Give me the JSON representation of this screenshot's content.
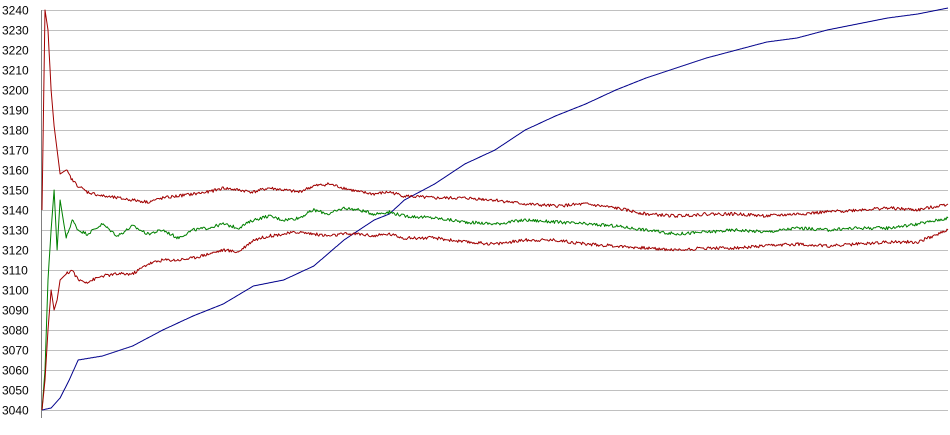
{
  "chart_data": {
    "type": "line",
    "title": "",
    "xlabel": "",
    "ylabel": "",
    "ylim": [
      3040,
      3240
    ],
    "xlim": [
      0,
      300
    ],
    "yticks": [
      3040,
      3050,
      3060,
      3070,
      3080,
      3090,
      3100,
      3110,
      3120,
      3130,
      3140,
      3150,
      3160,
      3170,
      3180,
      3190,
      3200,
      3210,
      3220,
      3230,
      3240
    ],
    "grid": true,
    "legend": "none",
    "series": [
      {
        "color": "#00008b",
        "x": [
          0,
          3,
          6,
          9,
          12,
          20,
          30,
          40,
          50,
          60,
          70,
          80,
          90,
          100,
          110,
          115,
          120,
          130,
          140,
          150,
          160,
          170,
          180,
          190,
          200,
          210,
          220,
          230,
          240,
          250,
          260,
          270,
          280,
          290,
          300
        ],
        "values": [
          3040,
          3041,
          3046,
          3055,
          3065,
          3067,
          3072,
          3080,
          3087,
          3093,
          3102,
          3105,
          3112,
          3125,
          3135,
          3138,
          3145,
          3153,
          3163,
          3170,
          3180,
          3187,
          3193,
          3200,
          3206,
          3211,
          3216,
          3220,
          3224,
          3226,
          3230,
          3233,
          3236,
          3238,
          3241
        ]
      },
      {
        "color": "#008000",
        "x": [
          0,
          1,
          2,
          3,
          4,
          5,
          6,
          8,
          10,
          12,
          15,
          20,
          25,
          30,
          35,
          40,
          45,
          50,
          55,
          60,
          65,
          70,
          75,
          80,
          85,
          90,
          95,
          100,
          105,
          110,
          115,
          120,
          130,
          140,
          150,
          160,
          170,
          180,
          190,
          200,
          210,
          220,
          230,
          240,
          250,
          260,
          270,
          280,
          290,
          300
        ],
        "values": [
          3040,
          3060,
          3105,
          3130,
          3150,
          3120,
          3145,
          3126,
          3135,
          3130,
          3128,
          3133,
          3127,
          3132,
          3128,
          3130,
          3126,
          3130,
          3131,
          3133,
          3131,
          3135,
          3137,
          3135,
          3136,
          3140,
          3138,
          3141,
          3140,
          3138,
          3139,
          3137,
          3136,
          3134,
          3133,
          3135,
          3134,
          3133,
          3132,
          3130,
          3128,
          3129,
          3130,
          3129,
          3131,
          3130,
          3131,
          3131,
          3133,
          3136
        ]
      },
      {
        "color": "#a00000",
        "x": [
          0,
          1,
          2,
          3,
          4,
          5,
          6,
          8,
          10,
          12,
          15,
          20,
          25,
          30,
          35,
          40,
          45,
          50,
          55,
          60,
          65,
          70,
          75,
          80,
          85,
          90,
          95,
          100,
          105,
          110,
          115,
          120,
          130,
          140,
          150,
          160,
          170,
          180,
          190,
          200,
          210,
          220,
          230,
          240,
          250,
          260,
          270,
          280,
          290,
          300
        ],
        "values": [
          3140,
          3240,
          3230,
          3200,
          3182,
          3170,
          3158,
          3160,
          3155,
          3152,
          3149,
          3147,
          3146,
          3145,
          3144,
          3146,
          3147,
          3148,
          3149,
          3151,
          3150,
          3149,
          3151,
          3150,
          3149,
          3152,
          3153,
          3151,
          3149,
          3148,
          3149,
          3147,
          3146,
          3146,
          3145,
          3143,
          3142,
          3143,
          3141,
          3138,
          3137,
          3138,
          3138,
          3137,
          3138,
          3139,
          3140,
          3141,
          3140,
          3143
        ]
      },
      {
        "color": "#a00000",
        "x": [
          0,
          1,
          2,
          3,
          4,
          5,
          6,
          8,
          10,
          12,
          15,
          20,
          25,
          30,
          35,
          40,
          45,
          50,
          55,
          60,
          65,
          70,
          75,
          80,
          85,
          90,
          95,
          100,
          105,
          110,
          115,
          120,
          130,
          140,
          150,
          160,
          170,
          180,
          190,
          200,
          210,
          220,
          230,
          240,
          250,
          260,
          270,
          280,
          290,
          300
        ],
        "values": [
          3040,
          3055,
          3080,
          3100,
          3090,
          3095,
          3105,
          3108,
          3110,
          3105,
          3104,
          3107,
          3108,
          3108,
          3113,
          3115,
          3115,
          3116,
          3118,
          3120,
          3119,
          3125,
          3127,
          3128,
          3129,
          3128,
          3127,
          3128,
          3128,
          3127,
          3128,
          3126,
          3126,
          3124,
          3123,
          3125,
          3125,
          3123,
          3122,
          3121,
          3120,
          3121,
          3121,
          3122,
          3123,
          3122,
          3123,
          3124,
          3124,
          3130
        ]
      }
    ]
  }
}
